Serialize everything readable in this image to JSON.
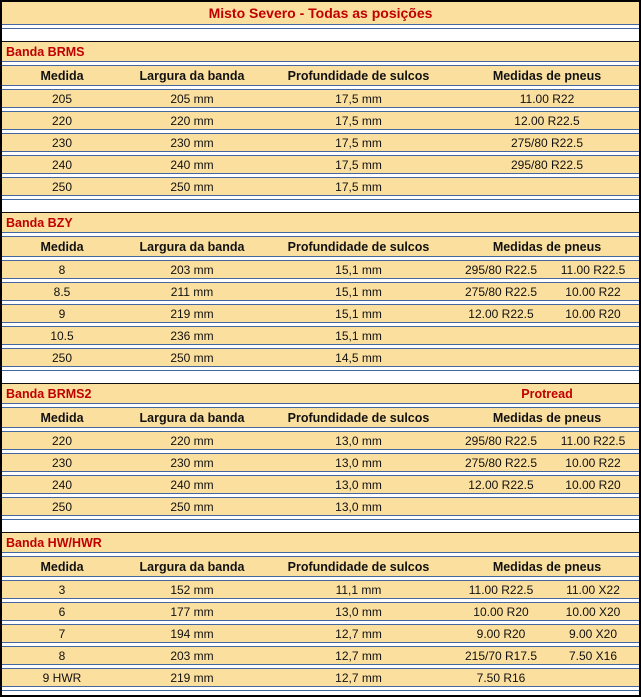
{
  "title": "Misto Severo - Todas as posições",
  "columns": [
    "Medida",
    "Largura da banda",
    "Profundidade de sulcos",
    "Medidas de pneus"
  ],
  "colors": {
    "accent_red": "#C00000",
    "fill_tan": "#FBDF9E",
    "grid_blue": "#44679F",
    "frame_black": "#000000"
  },
  "sections": [
    {
      "name": "Banda BRMS",
      "right_label": "",
      "rows": [
        {
          "medida": "205",
          "largura": "205 mm",
          "profundidade": "17,5 mm",
          "pneus": [
            "11.00 R22"
          ]
        },
        {
          "medida": "220",
          "largura": "220 mm",
          "profundidade": "17,5 mm",
          "pneus": [
            "12.00 R22.5"
          ]
        },
        {
          "medida": "230",
          "largura": "230 mm",
          "profundidade": "17,5 mm",
          "pneus": [
            "275/80 R22.5"
          ]
        },
        {
          "medida": "240",
          "largura": "240 mm",
          "profundidade": "17,5 mm",
          "pneus": [
            "295/80 R22.5"
          ]
        },
        {
          "medida": "250",
          "largura": "250 mm",
          "profundidade": "17,5 mm",
          "pneus": []
        }
      ]
    },
    {
      "name": "Banda BZY",
      "right_label": "",
      "rows": [
        {
          "medida": "8",
          "largura": "203 mm",
          "profundidade": "15,1 mm",
          "pneus": [
            "295/80 R22.5",
            "11.00 R22.5"
          ]
        },
        {
          "medida": "8.5",
          "largura": "211 mm",
          "profundidade": "15,1 mm",
          "pneus": [
            "275/80 R22.5",
            "10.00 R22"
          ]
        },
        {
          "medida": "9",
          "largura": "219 mm",
          "profundidade": "15,1 mm",
          "pneus": [
            "12.00 R22.5",
            "10.00 R20"
          ]
        },
        {
          "medida": "10.5",
          "largura": "236 mm",
          "profundidade": "15,1 mm",
          "pneus": []
        },
        {
          "medida": "250",
          "largura": "250 mm",
          "profundidade": "14,5 mm",
          "pneus": []
        }
      ]
    },
    {
      "name": "Banda BRMS2",
      "right_label": "Protread",
      "rows": [
        {
          "medida": "220",
          "largura": "220 mm",
          "profundidade": "13,0 mm",
          "pneus": [
            "295/80 R22.5",
            "11.00 R22.5"
          ]
        },
        {
          "medida": "230",
          "largura": "230 mm",
          "profundidade": "13,0 mm",
          "pneus": [
            "275/80 R22.5",
            "10.00 R22"
          ]
        },
        {
          "medida": "240",
          "largura": "240 mm",
          "profundidade": "13,0 mm",
          "pneus": [
            "12.00 R22.5",
            "10.00 R20"
          ]
        },
        {
          "medida": "250",
          "largura": "250 mm",
          "profundidade": "13,0 mm",
          "pneus": []
        }
      ]
    },
    {
      "name": "Banda HW/HWR",
      "right_label": "",
      "rows": [
        {
          "medida": "3",
          "largura": "152 mm",
          "profundidade": "11,1 mm",
          "pneus": [
            "11.00 R22.5",
            "11.00 X22"
          ]
        },
        {
          "medida": "6",
          "largura": "177 mm",
          "profundidade": "13,0 mm",
          "pneus": [
            "10.00 R20",
            "10.00 X20"
          ]
        },
        {
          "medida": "7",
          "largura": "194 mm",
          "profundidade": "12,7 mm",
          "pneus": [
            "9.00 R20",
            "9.00 X20"
          ]
        },
        {
          "medida": "8",
          "largura": "203 mm",
          "profundidade": "12,7 mm",
          "pneus": [
            "215/70 R17.5",
            "7.50 X16"
          ]
        },
        {
          "medida": "9 HWR",
          "largura": "219 mm",
          "profundidade": "12,7 mm",
          "pneus": [
            "7.50 R16",
            ""
          ]
        }
      ]
    }
  ]
}
